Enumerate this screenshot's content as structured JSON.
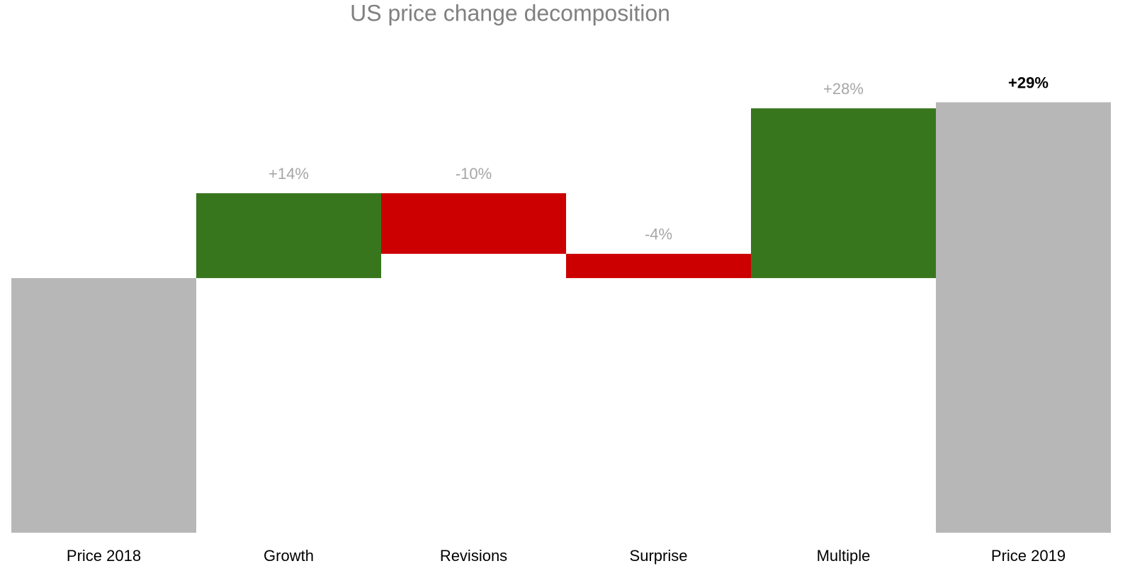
{
  "chart_data": {
    "type": "waterfall",
    "title": "US price change decomposition",
    "categories": [
      "Price 2018",
      "Growth",
      "Revisions",
      "Surprise",
      "Multiple",
      "Price 2019"
    ],
    "values": [
      0,
      14,
      -10,
      -4,
      28,
      29
    ],
    "value_labels": [
      null,
      "+14%",
      "-10%",
      "-4%",
      "+28%",
      "+29%"
    ],
    "totals": [
      true,
      false,
      false,
      false,
      false,
      true
    ],
    "colors": {
      "increase": "#38761d",
      "decrease": "#cc0000",
      "total": "#b7b7b7"
    },
    "ylim": [
      -42,
      30
    ]
  }
}
